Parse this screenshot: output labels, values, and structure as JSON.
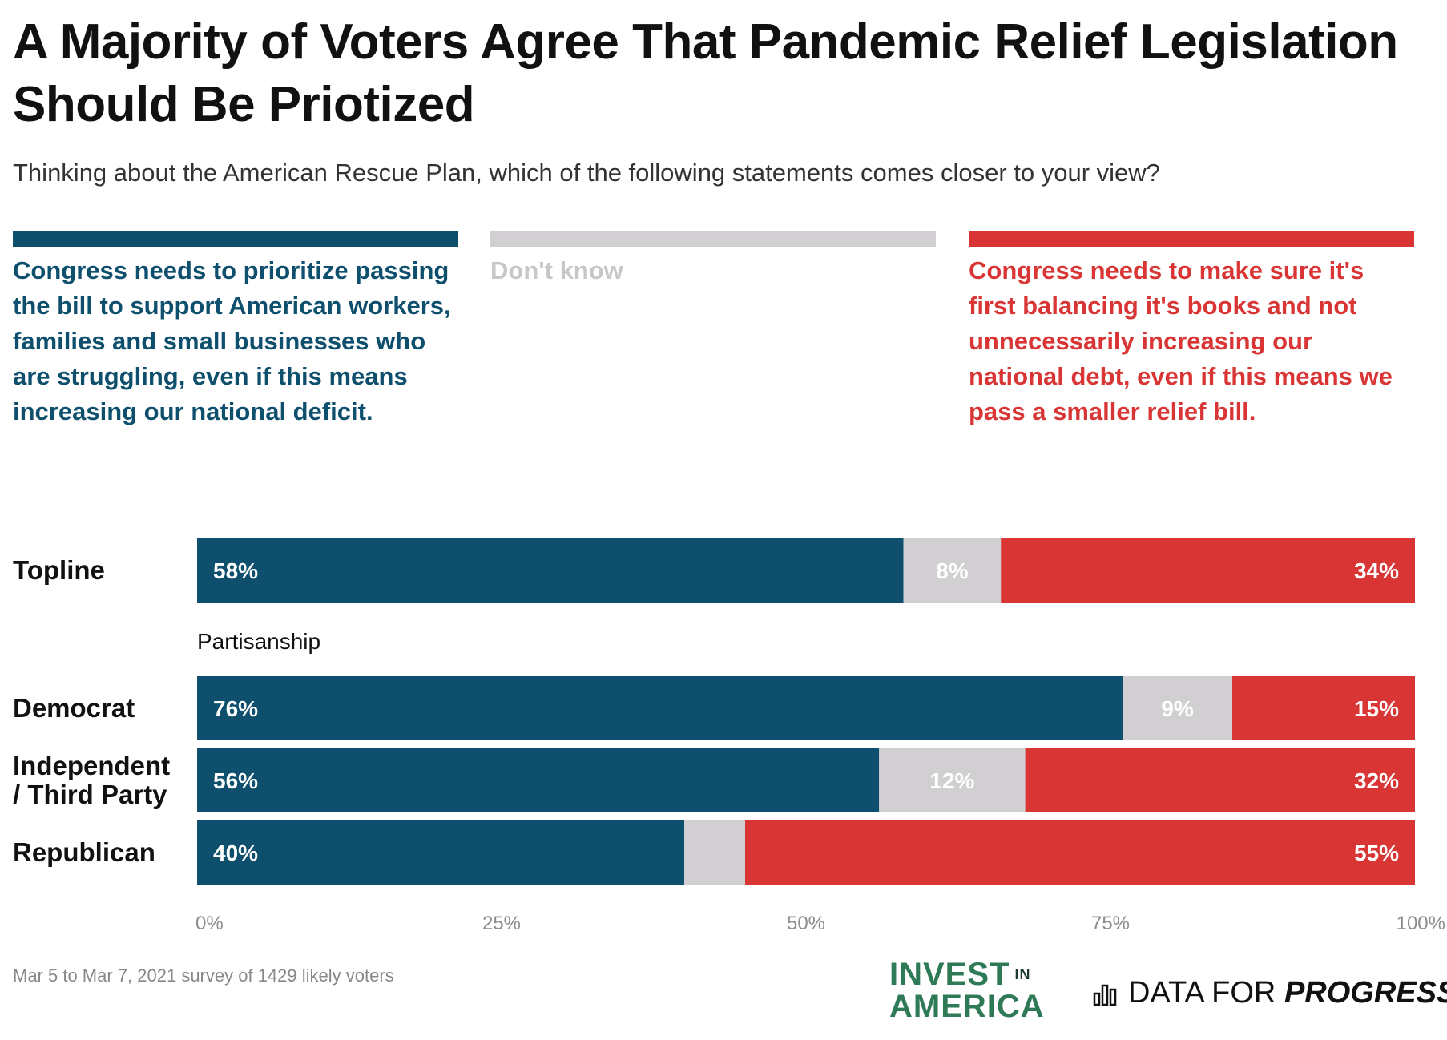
{
  "title": "A Majority of Voters Agree That Pandemic Relief Legislation Should Be Priotized",
  "subtitle": "Thinking about the American Rescue Plan, which of the following statements comes closer to your view?",
  "colors": {
    "prioritize": "#0d4f6c",
    "dont_know": "#d1cfd1",
    "balance": "#d93535",
    "dont_know_text": "#c8c6c8"
  },
  "legend": {
    "prioritize": "Congress needs to prioritize passing the bill to support American workers, families and small businesses who are struggling, even if this means increasing our national deficit.",
    "dont_know": "Don't know",
    "balance": "Congress needs to make sure it's first balancing it's books and not unnecessarily increasing our national debt, even if this means we pass a smaller relief bill."
  },
  "group_label": "Partisanship",
  "chart_data": {
    "type": "bar",
    "orientation": "horizontal",
    "stacked": true,
    "categories": [
      "Topline",
      "Democrat",
      "Independent / Third Party",
      "Republican"
    ],
    "series": [
      {
        "name": "Congress needs to prioritize passing the bill",
        "values": [
          58,
          76,
          56,
          40
        ],
        "labels": [
          "58%",
          "76%",
          "56%",
          "40%"
        ]
      },
      {
        "name": "Don't know",
        "values": [
          8,
          9,
          12,
          5
        ],
        "labels": [
          "8%",
          "9%",
          "12%",
          ""
        ]
      },
      {
        "name": "Congress needs to make sure it's first balancing it's books",
        "values": [
          34,
          15,
          32,
          55
        ],
        "labels": [
          "34%",
          "15%",
          "32%",
          "55%"
        ]
      }
    ],
    "xlim": [
      0,
      100
    ],
    "xticks": [
      "0%",
      "25%",
      "50%",
      "75%",
      "100%"
    ],
    "xlabel": "",
    "ylabel": ""
  },
  "row_labels": {
    "topline": "Topline",
    "democrat": "Democrat",
    "independent_1": "Independent",
    "independent_2": "/ Third Party",
    "republican": "Republican"
  },
  "footnote": "Mar 5 to Mar 7, 2021 survey of 1429 likely voters",
  "logos": {
    "invest_line1": "INVEST",
    "invest_in": "IN",
    "invest_line2": "AMERICA",
    "dfp_regular": "DATA FOR",
    "dfp_bold": "PROGRESS"
  }
}
